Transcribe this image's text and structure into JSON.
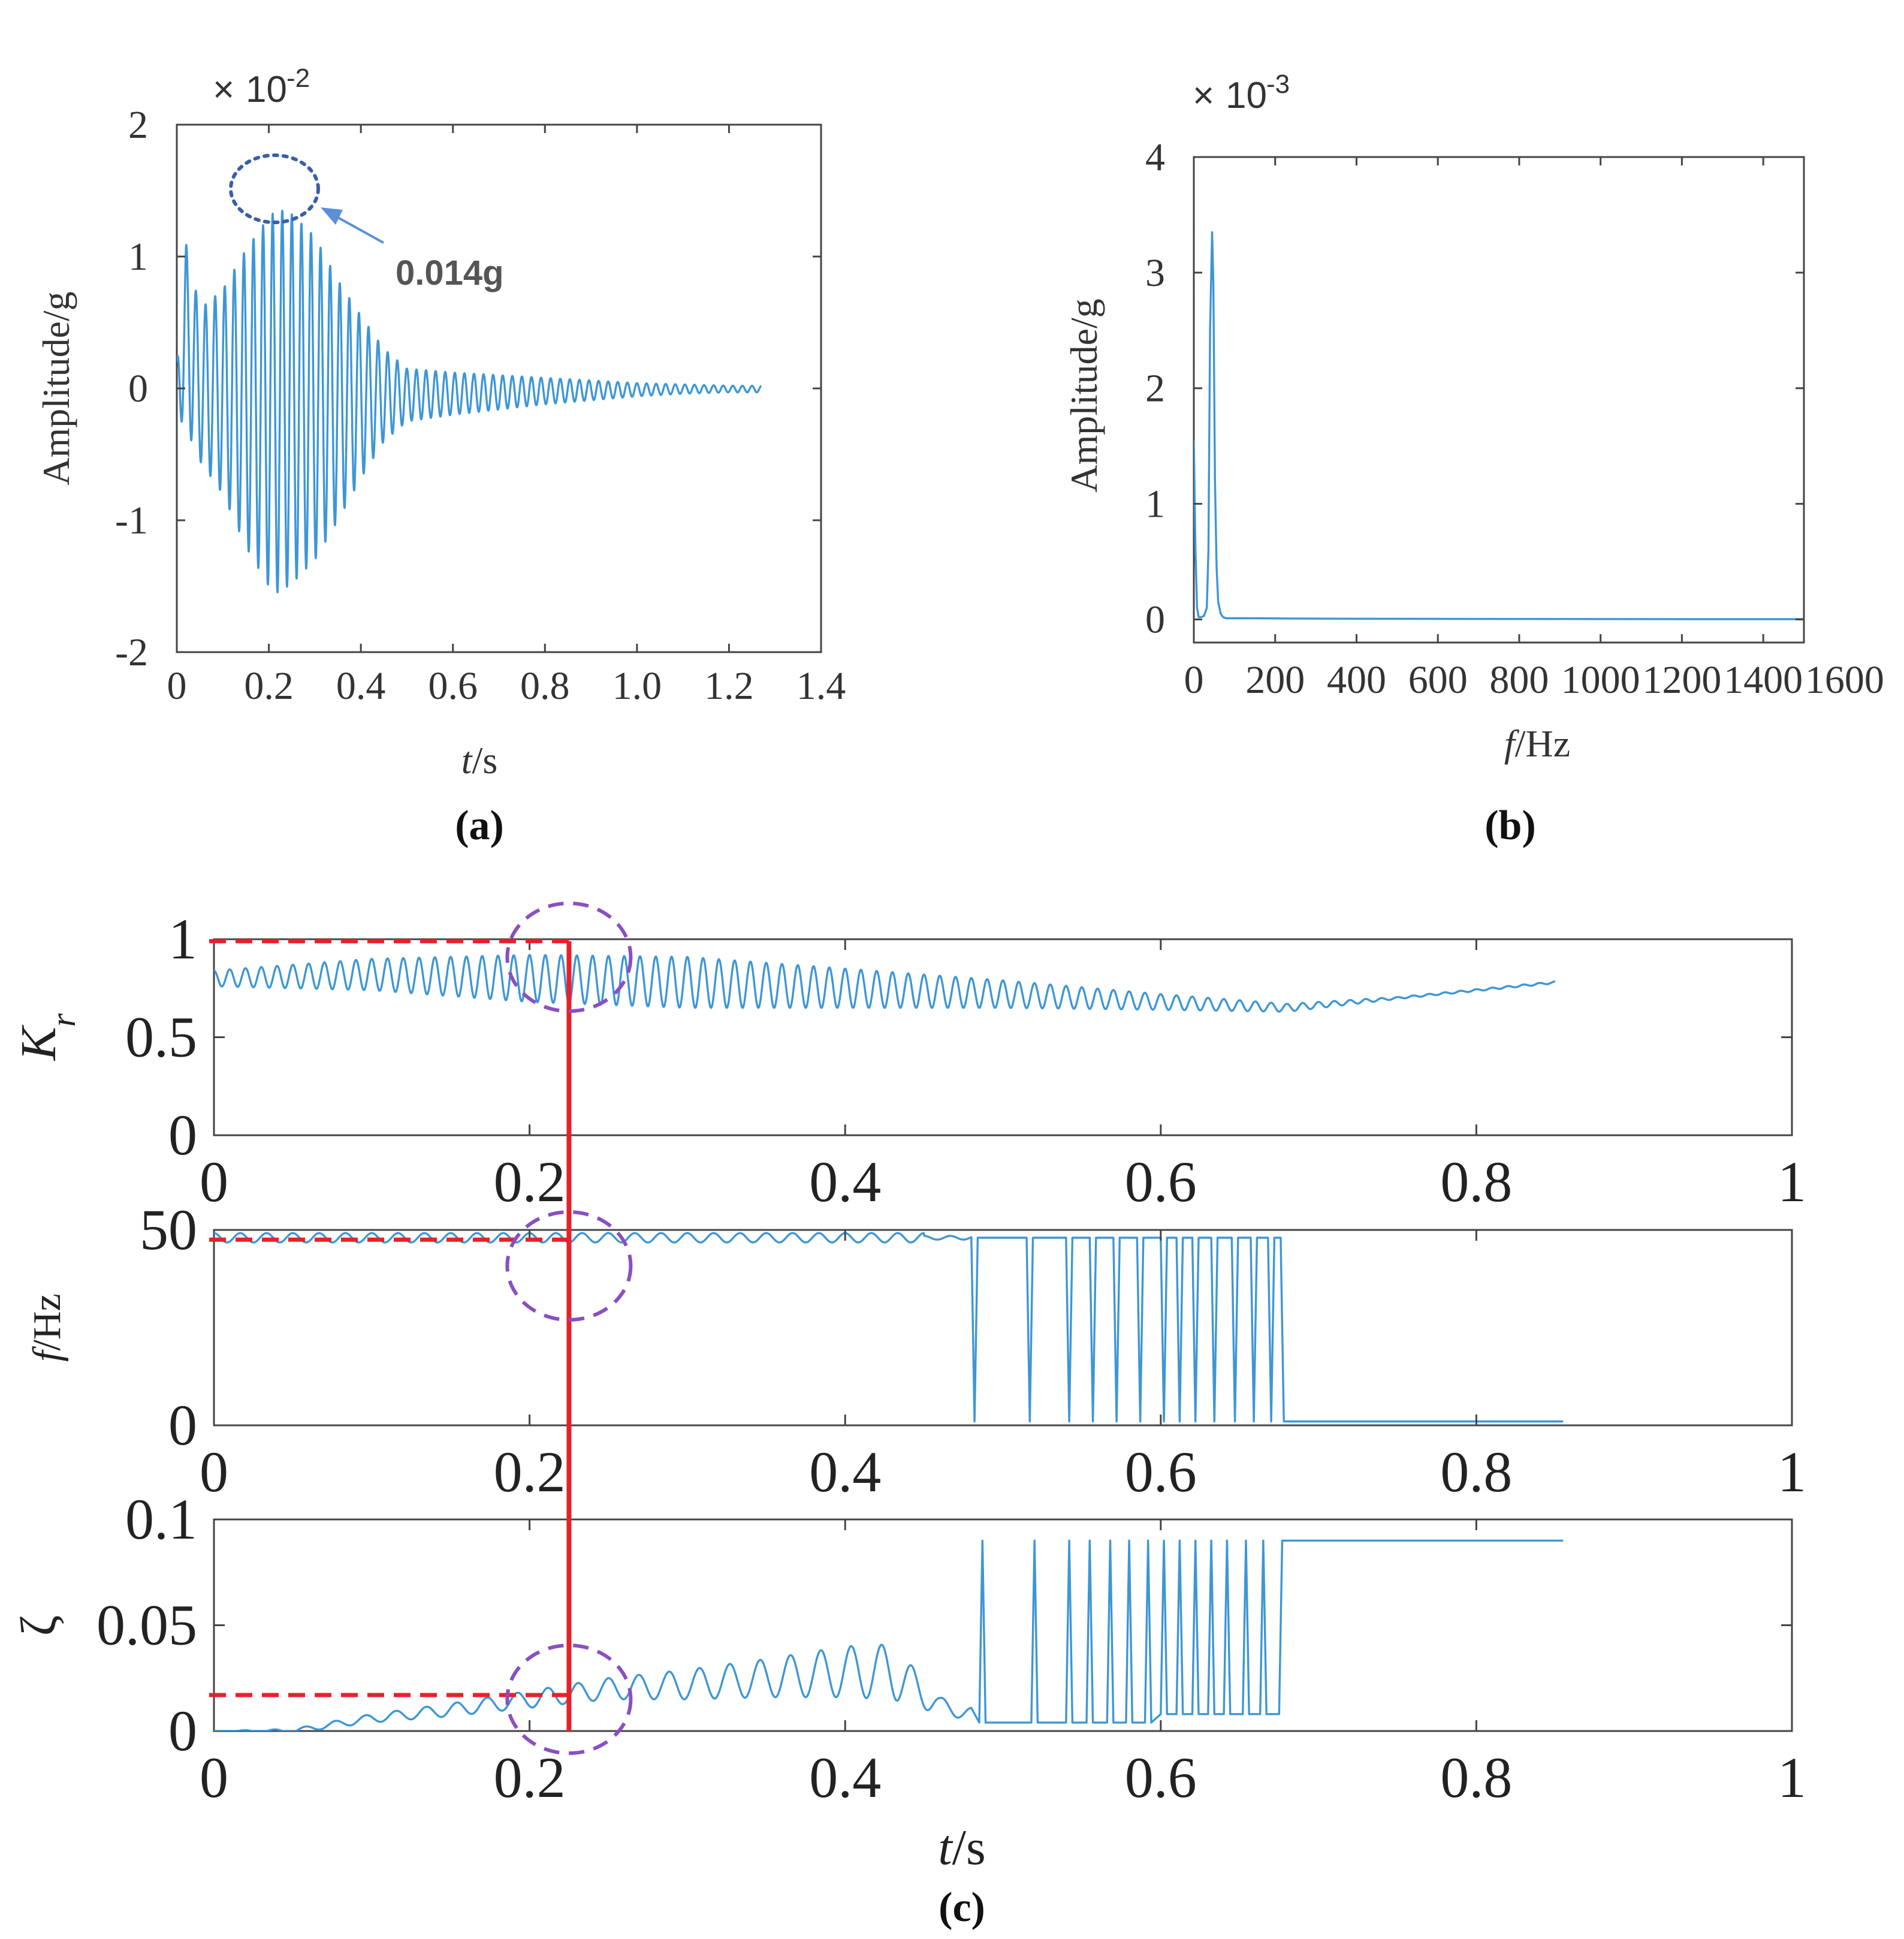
{
  "colors": {
    "signal": "#3d96d6",
    "marker": "#e8202a",
    "circle_c": "#8a4fc0",
    "circle_a": "#3a5ea8",
    "annotation_arrow": "#5b8fd8",
    "axis": "#444444"
  },
  "chart_data": [
    {
      "id": "a",
      "type": "line",
      "panel_label": "(a)",
      "xlabel_italic": "t",
      "xlabel_unit": "/s",
      "ylabel": "Amplitude/g",
      "multiplier_symbol": "×",
      "multiplier_text": "10",
      "multiplier_exp": "-2",
      "xlim": [
        0,
        1.4
      ],
      "ylim": [
        -2,
        2
      ],
      "xticks": [
        0,
        0.2,
        0.4,
        0.6,
        0.8,
        1.0,
        1.2,
        1.4
      ],
      "xtick_labels": [
        "0",
        "0.2",
        "0.4",
        "0.6",
        "0.8",
        "1.0",
        "1.2",
        "1.4"
      ],
      "yticks": [
        2,
        1,
        0,
        -1,
        -2
      ],
      "ytick_labels": [
        "2",
        "1",
        "0",
        "-1",
        "-2"
      ],
      "annotation": "0.014g",
      "annotation_target": {
        "x": 0.22,
        "y": 1.5
      },
      "series": [
        {
          "name": "acceleration",
          "envelope_x": [
            0,
            0.02,
            0.05,
            0.1,
            0.15,
            0.2,
            0.22,
            0.25,
            0.3,
            0.35,
            0.4,
            0.45,
            0.5,
            0.6,
            0.7,
            0.8,
            0.9,
            1.0,
            1.1,
            1.2,
            1.27
          ],
          "envelope_upper": [
            0.2,
            1.1,
            0.6,
            0.75,
            1.05,
            1.3,
            1.36,
            1.32,
            1.15,
            0.82,
            0.55,
            0.3,
            0.15,
            0.12,
            0.1,
            0.08,
            0.06,
            0.04,
            0.03,
            0.02,
            0.02
          ],
          "envelope_lower": [
            -0.2,
            -0.3,
            -0.55,
            -0.8,
            -1.2,
            -1.5,
            -1.55,
            -1.48,
            -1.3,
            -1.0,
            -0.68,
            -0.4,
            -0.25,
            -0.2,
            -0.16,
            -0.12,
            -0.09,
            -0.06,
            -0.04,
            -0.03,
            -0.03
          ],
          "oscillation_hz": 48
        }
      ]
    },
    {
      "id": "b",
      "type": "line",
      "panel_label": "(b)",
      "xlabel_italic": "f",
      "xlabel_unit": "/Hz",
      "ylabel": "Amplitude/g",
      "multiplier_symbol": "×",
      "multiplier_text": "10",
      "multiplier_exp": "-3",
      "xlim": [
        0,
        1500
      ],
      "ylim": [
        -0.2,
        4
      ],
      "xticks": [
        0,
        200,
        400,
        600,
        800,
        1000,
        1200,
        1400,
        1600
      ],
      "xtick_labels": [
        "0",
        "200",
        "400",
        "600",
        "800",
        "1000",
        "1200",
        "1400",
        "1600"
      ],
      "yticks": [
        4,
        3,
        2,
        1,
        0
      ],
      "ytick_labels": [
        "4",
        "3",
        "2",
        "1",
        "0"
      ],
      "series": [
        {
          "name": "spectrum",
          "x": [
            0,
            4,
            8,
            12,
            18,
            25,
            32,
            36,
            40,
            45,
            48,
            52,
            56,
            60,
            66,
            72,
            80,
            100,
            150,
            250,
            400,
            600,
            800,
            1000,
            1200,
            1500
          ],
          "y": [
            1.55,
            0.6,
            0.1,
            0.02,
            0.02,
            0.03,
            0.1,
            0.6,
            2.5,
            3.35,
            2.9,
            1.2,
            0.45,
            0.15,
            0.05,
            0.02,
            0.01,
            0.01,
            0.01,
            0.008,
            0.006,
            0.005,
            0.004,
            0.003,
            0.002,
            0.002
          ]
        }
      ]
    },
    {
      "id": "c1",
      "type": "line",
      "ylabel": "K",
      "ylabel_sub": "r",
      "xlim": [
        0,
        1
      ],
      "ylim": [
        0,
        1
      ],
      "xticks": [
        0,
        0.2,
        0.4,
        0.6,
        0.8,
        1
      ],
      "xtick_labels": [
        "0",
        "0.2",
        "0.4",
        "0.6",
        "0.8",
        "1"
      ],
      "yticks": [
        1,
        0.5,
        0
      ],
      "ytick_labels": [
        "1",
        "0.5",
        "0"
      ],
      "reference_value": 0.99,
      "series": [
        {
          "name": "Kr",
          "base_x": [
            0,
            0.1,
            0.2,
            0.3,
            0.4,
            0.5,
            0.6,
            0.68,
            0.75,
            0.85
          ],
          "base_y": [
            0.8,
            0.82,
            0.8,
            0.78,
            0.75,
            0.72,
            0.68,
            0.65,
            0.7,
            0.78
          ],
          "amp_y": [
            0.04,
            0.08,
            0.12,
            0.13,
            0.1,
            0.07,
            0.04,
            0.02,
            0.005,
            0.005
          ]
        }
      ]
    },
    {
      "id": "c2",
      "type": "line",
      "ylabel_italic": "f",
      "ylabel_unit": "/Hz",
      "xlim": [
        0,
        1
      ],
      "ylim": [
        0,
        50
      ],
      "xticks": [
        0,
        0.2,
        0.4,
        0.6,
        0.8,
        1
      ],
      "xtick_labels": [
        "0",
        "0.2",
        "0.4",
        "0.6",
        "0.8",
        "1"
      ],
      "yticks": [
        50,
        0
      ],
      "ytick_labels": [
        "50",
        "0"
      ],
      "reference_value": 47.5,
      "series": [
        {
          "name": "frequency",
          "steady_value": 48,
          "steady_until": 0.48,
          "drop_times": [
            0.48,
            0.515,
            0.54,
            0.555,
            0.57,
            0.585,
            0.6,
            0.61,
            0.62,
            0.632,
            0.645,
            0.657,
            0.668,
            0.676
          ],
          "end_time": 0.676,
          "tail_value": 1,
          "tail_until": 0.855
        }
      ]
    },
    {
      "id": "c3",
      "type": "line",
      "panel_label": "(c)",
      "ylabel": "ζ",
      "xlabel_italic": "t",
      "xlabel_unit": "/s",
      "xlim": [
        0,
        1
      ],
      "ylim": [
        0,
        0.1
      ],
      "xticks": [
        0,
        0.2,
        0.4,
        0.6,
        0.8,
        1
      ],
      "xtick_labels": [
        "0",
        "0.2",
        "0.4",
        "0.6",
        "0.8",
        "1"
      ],
      "yticks": [
        0.1,
        0.05,
        0
      ],
      "ytick_labels": [
        "0.1",
        "0.05",
        "0"
      ],
      "reference_value": 0.017,
      "marker_time": 0.225,
      "series": [
        {
          "name": "damping",
          "base_x": [
            0,
            0.05,
            0.1,
            0.15,
            0.2,
            0.25,
            0.3,
            0.35,
            0.4,
            0.43,
            0.46,
            0.48
          ],
          "base_y": [
            0.0,
            0.0,
            0.006,
            0.01,
            0.015,
            0.02,
            0.022,
            0.025,
            0.028,
            0.028,
            0.012,
            0.008
          ],
          "amp_y": [
            0.0,
            0.001,
            0.002,
            0.003,
            0.004,
            0.005,
            0.007,
            0.009,
            0.012,
            0.013,
            0.004,
            0.003
          ],
          "spike_times": [
            0.485,
            0.518,
            0.54,
            0.553,
            0.566,
            0.578,
            0.59,
            0.6,
            0.61,
            0.62,
            0.63,
            0.64,
            0.652,
            0.663,
            0.675
          ],
          "spike_value": 0.09,
          "tail_value": 0.09,
          "tail_until": 0.855
        }
      ]
    }
  ]
}
